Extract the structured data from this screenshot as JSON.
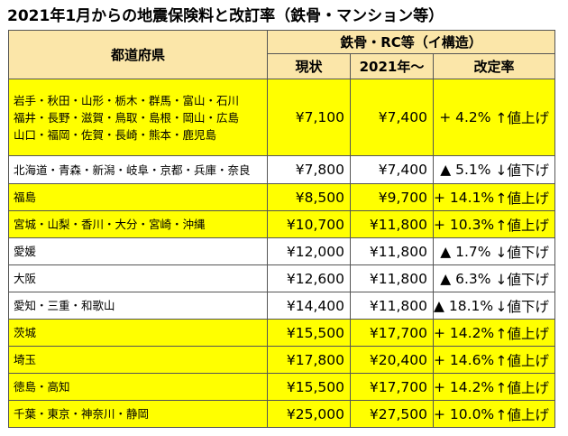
{
  "title": "2021年1月からの地震保険料と改訂率（鉄骨・マンション等）",
  "header": {
    "prefecture": "都道府県",
    "group": "鉄骨・RC等（イ構造）",
    "current": "現状",
    "from2021": "2021年～",
    "rate": "改定率"
  },
  "rows": [
    {
      "prefecture_lines": [
        "岩手・秋田・山形・栃木・群馬・富山・石川",
        "福井・長野・滋賀・鳥取・島根・岡山・広島",
        "山口・福岡・佐賀・長崎・熊本・鹿児島"
      ],
      "current": "¥7,100",
      "new": "¥7,400",
      "rate": "+ 4.2%",
      "direction": "↑値上げ",
      "type": "up"
    },
    {
      "prefecture_lines": [
        "北海道・青森・新潟・岐阜・京都・兵庫・奈良"
      ],
      "current": "¥7,800",
      "new": "¥7,400",
      "rate": "▲ 5.1%",
      "direction": "↓値下げ",
      "type": "down"
    },
    {
      "prefecture_lines": [
        "福島"
      ],
      "current": "¥8,500",
      "new": "¥9,700",
      "rate": "+ 14.1%",
      "direction": "↑値上げ",
      "type": "up"
    },
    {
      "prefecture_lines": [
        "宮城・山梨・香川・大分・宮崎・沖縄"
      ],
      "current": "¥10,700",
      "new": "¥11,800",
      "rate": "+ 10.3%",
      "direction": "↑値上げ",
      "type": "up"
    },
    {
      "prefecture_lines": [
        "愛媛"
      ],
      "current": "¥12,000",
      "new": "¥11,800",
      "rate": "▲ 1.7%",
      "direction": "↓値下げ",
      "type": "down"
    },
    {
      "prefecture_lines": [
        "大阪"
      ],
      "current": "¥12,600",
      "new": "¥11,800",
      "rate": "▲ 6.3%",
      "direction": "↓値下げ",
      "type": "down"
    },
    {
      "prefecture_lines": [
        "愛知・三重・和歌山"
      ],
      "current": "¥14,400",
      "new": "¥11,800",
      "rate": "▲ 18.1%",
      "direction": "↓値下げ",
      "type": "down"
    },
    {
      "prefecture_lines": [
        "茨城"
      ],
      "current": "¥15,500",
      "new": "¥17,700",
      "rate": "+ 14.2%",
      "direction": "↑値上げ",
      "type": "up"
    },
    {
      "prefecture_lines": [
        "埼玉"
      ],
      "current": "¥17,800",
      "new": "¥20,400",
      "rate": "+ 14.6%",
      "direction": "↑値上げ",
      "type": "up"
    },
    {
      "prefecture_lines": [
        "徳島・高知"
      ],
      "current": "¥15,500",
      "new": "¥17,700",
      "rate": "+ 14.2%",
      "direction": "↑値上げ",
      "type": "up"
    },
    {
      "prefecture_lines": [
        "千葉・東京・神奈川・静岡"
      ],
      "current": "¥25,000",
      "new": "¥27,500",
      "rate": "+ 10.0%",
      "direction": "↑値上げ",
      "type": "up"
    }
  ],
  "colors": {
    "header_bg": "#fbe6a9",
    "highlight": "#ffff00",
    "border": "#555555"
  }
}
